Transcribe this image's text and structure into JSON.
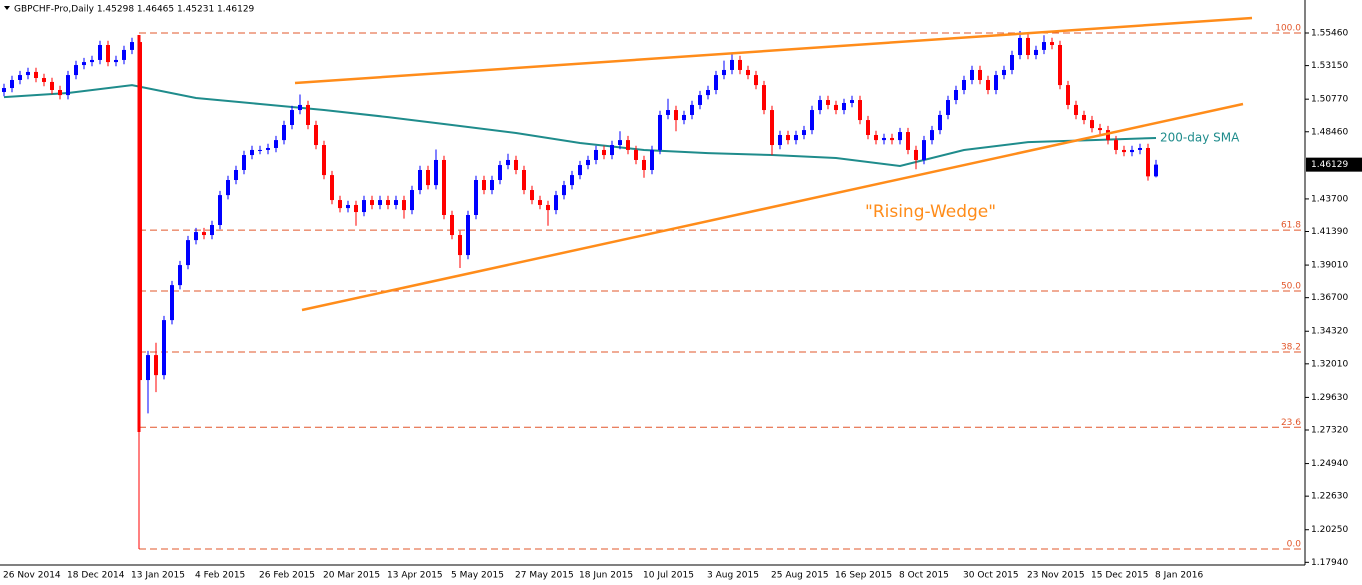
{
  "chart_data": {
    "type": "candlestick",
    "title": "GBPCHF-Pro,Daily  1.45298 1.46465 1.45231 1.46129",
    "annotation": "\"Rising-Wedge\"",
    "last_price": 1.46129,
    "up_color": "#0000ff",
    "down_color": "#ff0000",
    "ylim": [
      1.1775,
      1.578
    ],
    "yticks": [
      {
        "value": 1.5546,
        "label": "1.55460"
      },
      {
        "value": 1.5315,
        "label": "1.53150"
      },
      {
        "value": 1.5077,
        "label": "1.50770"
      },
      {
        "value": 1.4846,
        "label": "1.48460"
      },
      {
        "value": 1.437,
        "label": "1.43700"
      },
      {
        "value": 1.4139,
        "label": "1.41390"
      },
      {
        "value": 1.3901,
        "label": "1.39010"
      },
      {
        "value": 1.367,
        "label": "1.36700"
      },
      {
        "value": 1.3432,
        "label": "1.34320"
      },
      {
        "value": 1.3201,
        "label": "1.32010"
      },
      {
        "value": 1.2963,
        "label": "1.29630"
      },
      {
        "value": 1.2732,
        "label": "1.27320"
      },
      {
        "value": 1.2494,
        "label": "1.24940"
      },
      {
        "value": 1.2263,
        "label": "1.22630"
      },
      {
        "value": 1.2025,
        "label": "1.20250"
      },
      {
        "value": 1.1794,
        "label": "1.17940"
      }
    ],
    "fib_levels": [
      {
        "label": "100.0",
        "price": 1.5546
      },
      {
        "label": "61.8",
        "price": 1.4149
      },
      {
        "label": "50.0",
        "price": 1.3717
      },
      {
        "label": "38.2",
        "price": 1.3285
      },
      {
        "label": "23.6",
        "price": 1.2751
      },
      {
        "label": "0.0",
        "price": 1.1888
      }
    ],
    "fib_color": "#e2572b",
    "categories": [
      "26 Nov 2014",
      null,
      null,
      null,
      null,
      null,
      null,
      null,
      "18 Dec 2014",
      null,
      null,
      null,
      null,
      null,
      null,
      null,
      "13 Jan 2015",
      null,
      null,
      null,
      null,
      null,
      null,
      null,
      "4 Feb 2015",
      null,
      null,
      null,
      null,
      null,
      null,
      null,
      "26 Feb 2015",
      null,
      null,
      null,
      null,
      null,
      null,
      null,
      "20 Mar 2015",
      null,
      null,
      null,
      null,
      null,
      null,
      null,
      "13 Apr 2015",
      null,
      null,
      null,
      null,
      null,
      null,
      null,
      "5 May 2015",
      null,
      null,
      null,
      null,
      null,
      null,
      null,
      "27 May 2015",
      null,
      null,
      null,
      null,
      null,
      null,
      null,
      "18 Jun 2015",
      null,
      null,
      null,
      null,
      null,
      null,
      null,
      "10 Jul 2015",
      null,
      null,
      null,
      null,
      null,
      null,
      null,
      "3 Aug 2015",
      null,
      null,
      null,
      null,
      null,
      null,
      null,
      "25 Aug 2015",
      null,
      null,
      null,
      null,
      null,
      null,
      null,
      "16 Sep 2015",
      null,
      null,
      null,
      null,
      null,
      null,
      null,
      "8 Oct 2015",
      null,
      null,
      null,
      null,
      null,
      null,
      null,
      "30 Oct 2015",
      null,
      null,
      null,
      null,
      null,
      null,
      null,
      "23 Nov 2015",
      null,
      null,
      null,
      null,
      null,
      null,
      null,
      "15 Dec 2015",
      null,
      null,
      null,
      null,
      null,
      null,
      null,
      "8 Jan 2016"
    ],
    "open": [
      1.5128,
      1.5156,
      1.5213,
      1.5248,
      1.527,
      1.5227,
      1.5199,
      1.5142,
      1.5106,
      1.5248,
      1.5319,
      1.534,
      1.5355,
      1.5461,
      1.534,
      1.5355,
      1.5426,
      1.5482,
      1.3086,
      1.3263,
      1.3121,
      1.3511,
      1.3759,
      1.3901,
      1.4078,
      1.4135,
      1.4114,
      1.4185,
      1.4397,
      1.4504,
      1.4575,
      1.4681,
      1.4717,
      1.4717,
      1.4731,
      1.4787,
      1.4894,
      1.5,
      1.5036,
      1.4894,
      1.4752,
      1.4539,
      1.4362,
      1.4305,
      1.4327,
      1.4277,
      1.4362,
      1.4327,
      1.4362,
      1.4327,
      1.4362,
      1.4291,
      1.4433,
      1.4575,
      1.4468,
      1.4646,
      1.4256,
      1.4114,
      1.3972,
      1.4256,
      1.4504,
      1.4433,
      1.4504,
      1.461,
      1.4646,
      1.4575,
      1.4433,
      1.4362,
      1.4327,
      1.4291,
      1.4397,
      1.4468,
      1.4539,
      1.461,
      1.4646,
      1.4717,
      1.4681,
      1.4752,
      1.4787,
      1.4717,
      1.4646,
      1.4575,
      1.4717,
      1.4965,
      1.5,
      1.4929,
      1.4965,
      1.5036,
      1.5106,
      1.5142,
      1.5248,
      1.5284,
      1.5355,
      1.5284,
      1.5248,
      1.5177,
      1.5,
      1.4752,
      1.4823,
      1.4787,
      1.4823,
      1.4858,
      1.5,
      1.5071,
      1.5036,
      1.5,
      1.505,
      1.5071,
      1.4929,
      1.4823,
      1.4787,
      1.4802,
      1.4787,
      1.4844,
      1.4717,
      1.4646,
      1.4787,
      1.4858,
      1.4965,
      1.5071,
      1.5142,
      1.5213,
      1.5284,
      1.5213,
      1.5142,
      1.5248,
      1.5284,
      1.539,
      1.5511,
      1.539,
      1.5426,
      1.5482,
      1.5461,
      1.5177,
      1.5036,
      1.4965,
      1.4929,
      1.4872,
      1.4858,
      1.4787,
      1.4717,
      1.4702,
      1.4717,
      1.4731,
      1.45298
    ],
    "high": [
      1.5186,
      1.5243,
      1.5278,
      1.53,
      1.53,
      1.5257,
      1.5229,
      1.5172,
      1.5278,
      1.5349,
      1.537,
      1.5385,
      1.5491,
      1.5491,
      1.5385,
      1.5456,
      1.5512,
      1.5511,
      1.3293,
      1.335,
      1.3541,
      1.3789,
      1.3931,
      1.4108,
      1.4165,
      1.4165,
      1.4215,
      1.4427,
      1.4534,
      1.4605,
      1.4711,
      1.4747,
      1.4747,
      1.4761,
      1.4817,
      1.4924,
      1.503,
      1.511,
      1.5066,
      1.4924,
      1.4782,
      1.4569,
      1.4392,
      1.4357,
      1.4357,
      1.4392,
      1.4392,
      1.4392,
      1.4392,
      1.4392,
      1.4392,
      1.4463,
      1.4605,
      1.4605,
      1.472,
      1.4676,
      1.4286,
      1.4144,
      1.4286,
      1.4534,
      1.4534,
      1.4534,
      1.464,
      1.469,
      1.4676,
      1.4605,
      1.4463,
      1.4392,
      1.4357,
      1.4427,
      1.4498,
      1.4569,
      1.464,
      1.4676,
      1.4747,
      1.4747,
      1.4782,
      1.485,
      1.4817,
      1.4747,
      1.4676,
      1.4747,
      1.4995,
      1.508,
      1.503,
      1.4995,
      1.5066,
      1.5136,
      1.5172,
      1.5278,
      1.535,
      1.5395,
      1.5385,
      1.5314,
      1.5278,
      1.5207,
      1.503,
      1.4853,
      1.4853,
      1.4853,
      1.4888,
      1.503,
      1.5101,
      1.5101,
      1.5066,
      1.508,
      1.5101,
      1.5101,
      1.4959,
      1.4853,
      1.4832,
      1.4832,
      1.4874,
      1.4874,
      1.4747,
      1.4817,
      1.4888,
      1.4995,
      1.5101,
      1.5172,
      1.5243,
      1.5314,
      1.5314,
      1.5243,
      1.5278,
      1.5314,
      1.542,
      1.556,
      1.5541,
      1.5456,
      1.553,
      1.5512,
      1.5491,
      1.5207,
      1.5066,
      1.4995,
      1.4959,
      1.4902,
      1.4888,
      1.4817,
      1.4747,
      1.4747,
      1.4761,
      1.4761,
      1.46465
    ],
    "low": [
      1.5098,
      1.5126,
      1.5183,
      1.5218,
      1.5197,
      1.5169,
      1.5112,
      1.5076,
      1.5076,
      1.5218,
      1.5289,
      1.531,
      1.5325,
      1.531,
      1.531,
      1.5325,
      1.5396,
      1.273,
      1.285,
      1.3,
      1.3091,
      1.3481,
      1.3729,
      1.3871,
      1.4048,
      1.4084,
      1.4084,
      1.4155,
      1.4367,
      1.4474,
      1.4545,
      1.4651,
      1.4687,
      1.4687,
      1.4701,
      1.4757,
      1.4864,
      1.497,
      1.4864,
      1.4722,
      1.4509,
      1.4332,
      1.4275,
      1.4275,
      1.418,
      1.4247,
      1.4297,
      1.4297,
      1.4297,
      1.4297,
      1.423,
      1.4261,
      1.4403,
      1.4438,
      1.4438,
      1.4226,
      1.4084,
      1.388,
      1.3942,
      1.4226,
      1.4403,
      1.4403,
      1.4474,
      1.458,
      1.4545,
      1.4403,
      1.4332,
      1.4297,
      1.418,
      1.4261,
      1.4367,
      1.4438,
      1.4509,
      1.458,
      1.4616,
      1.4651,
      1.4651,
      1.4722,
      1.4687,
      1.4616,
      1.452,
      1.4545,
      1.4687,
      1.4935,
      1.485,
      1.4899,
      1.4935,
      1.5006,
      1.5076,
      1.5112,
      1.5218,
      1.5254,
      1.5254,
      1.5218,
      1.5147,
      1.497,
      1.468,
      1.4722,
      1.4757,
      1.4757,
      1.4793,
      1.4828,
      1.497,
      1.5006,
      1.497,
      1.497,
      1.502,
      1.4899,
      1.4793,
      1.4757,
      1.4757,
      1.4757,
      1.4757,
      1.4687,
      1.458,
      1.4616,
      1.4757,
      1.4828,
      1.4935,
      1.5041,
      1.5112,
      1.5183,
      1.5183,
      1.5112,
      1.5112,
      1.5218,
      1.5254,
      1.536,
      1.536,
      1.536,
      1.5396,
      1.5431,
      1.5147,
      1.5006,
      1.4935,
      1.4899,
      1.4842,
      1.4828,
      1.4757,
      1.4687,
      1.4672,
      1.4672,
      1.4687,
      1.45,
      1.45231
    ],
    "close": [
      1.5156,
      1.5213,
      1.5248,
      1.527,
      1.5227,
      1.5199,
      1.5142,
      1.5106,
      1.5248,
      1.5319,
      1.534,
      1.5355,
      1.5461,
      1.534,
      1.5355,
      1.5426,
      1.5482,
      1.3086,
      1.3263,
      1.3121,
      1.3511,
      1.3759,
      1.3901,
      1.4078,
      1.4135,
      1.4114,
      1.4185,
      1.4397,
      1.4504,
      1.4575,
      1.4681,
      1.4717,
      1.4717,
      1.4731,
      1.4787,
      1.4894,
      1.5,
      1.5036,
      1.4894,
      1.4752,
      1.4539,
      1.4362,
      1.4305,
      1.4327,
      1.4277,
      1.4362,
      1.4327,
      1.4362,
      1.4327,
      1.4362,
      1.4291,
      1.4433,
      1.4575,
      1.4468,
      1.4646,
      1.4256,
      1.4114,
      1.3972,
      1.4256,
      1.4504,
      1.4433,
      1.4504,
      1.461,
      1.4646,
      1.4575,
      1.4433,
      1.4362,
      1.4327,
      1.4291,
      1.4397,
      1.4468,
      1.4539,
      1.461,
      1.4646,
      1.4717,
      1.4681,
      1.4752,
      1.4787,
      1.4717,
      1.4646,
      1.4575,
      1.4717,
      1.4965,
      1.5,
      1.4929,
      1.4965,
      1.5036,
      1.5106,
      1.5142,
      1.5248,
      1.5284,
      1.5355,
      1.5284,
      1.5248,
      1.5177,
      1.5,
      1.4752,
      1.4823,
      1.4787,
      1.4823,
      1.4858,
      1.5,
      1.5071,
      1.5036,
      1.5,
      1.505,
      1.5071,
      1.4929,
      1.4823,
      1.4787,
      1.4802,
      1.4787,
      1.4844,
      1.4717,
      1.4646,
      1.4787,
      1.4858,
      1.4965,
      1.5071,
      1.5142,
      1.5213,
      1.5284,
      1.5213,
      1.5142,
      1.5248,
      1.5284,
      1.539,
      1.5511,
      1.539,
      1.5426,
      1.5482,
      1.5461,
      1.5177,
      1.5036,
      1.4965,
      1.4929,
      1.4872,
      1.4858,
      1.4787,
      1.4717,
      1.4702,
      1.4717,
      1.4731,
      1.453,
      1.46129
    ],
    "sma": {
      "name": "200-day SMA",
      "color": "#1f8c8c",
      "values": [
        1.5092,
        1.5121,
        1.5177,
        1.5085,
        1.5043,
        1.5,
        1.495,
        1.4894,
        1.4837,
        1.4766,
        1.4717,
        1.4695,
        1.4681,
        1.466,
        1.4603,
        1.4717,
        1.4773,
        1.4787,
        1.4802
      ]
    }
  }
}
